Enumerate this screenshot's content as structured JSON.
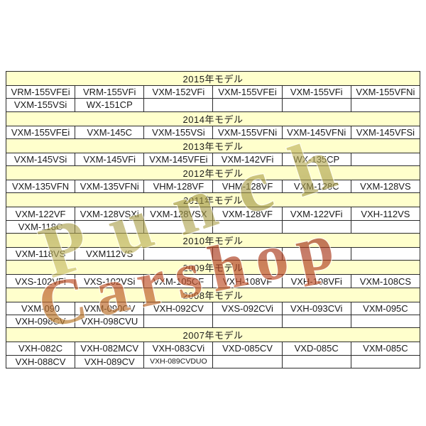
{
  "table": {
    "header_bg": "#ffffcc",
    "cell_bg": "#ffffff",
    "border_color": "#2b2b2b",
    "columns": 6,
    "sections": [
      {
        "year_label": "2015年モデル",
        "rows": [
          [
            "VRM-155VFEi",
            "VRM-155VFi",
            "VXM-152VFi",
            "VXM-155VFEi",
            "VXM-155VFi",
            "VXM-155VFNi"
          ],
          [
            "VXM-155VSi",
            "WX-151CP",
            "",
            "",
            "",
            ""
          ]
        ]
      },
      {
        "year_label": "2014年モデル",
        "rows": [
          [
            "VXM-155VFEi",
            "VXM-145C",
            "VXM-155VSi",
            "VXM-155VFNi",
            "VXM-145VFNi",
            "VXM-145VFSi"
          ]
        ]
      },
      {
        "year_label": "2013年モデル",
        "rows": [
          [
            "VXM-145VSi",
            "VXM-145VFi",
            "VXM-145VFEi",
            "VXM-142VFi",
            "WX-135CP",
            ""
          ]
        ]
      },
      {
        "year_label": "2012年モデル",
        "rows": [
          [
            "VXM-135VFN",
            "VXM-135VFNi",
            "VHM-128VF",
            "VHM-128VF",
            "VXM-128C",
            "VXM-128VS"
          ]
        ]
      },
      {
        "year_label": "2011年モデル",
        "rows": [
          [
            "VXM-122VF",
            "VXM-128VSXi",
            "VXM-128VSX",
            "VXM-128VF",
            "VXM-122VFi",
            "VXH-112VS"
          ],
          [
            "VXM-118C",
            "",
            "",
            "",
            "",
            ""
          ]
        ]
      },
      {
        "year_label": "2010年モデル",
        "rows": [
          [
            "VXM-118VS",
            "VXM112VS",
            "",
            "",
            "",
            ""
          ]
        ]
      },
      {
        "year_label": "2009年モデル",
        "rows": [
          [
            "VXS-102VFi",
            "VXS-102VSi",
            "VXM-105CF",
            "VXH-108VF",
            "VXH-108VFi",
            "VXM-108CS"
          ]
        ]
      },
      {
        "year_label": "2008年モデル",
        "rows": [
          [
            "VXM-090",
            "VXM-090CV",
            "VXH-092CV",
            "VXS-092CVi",
            "VXH-093CVi",
            "VXM-095C"
          ],
          [
            "VXH-098CV",
            "VXH-098CVU",
            "",
            "",
            "",
            ""
          ]
        ]
      },
      {
        "year_label": "2007年モデル",
        "rows": [
          [
            "VXH-082C",
            "VXH-082MCV",
            "VXH-083CVi",
            "VXD-085CV",
            "VXD-085C",
            "VXM-085C"
          ],
          [
            "VXH-088CV",
            "VXH-089CV",
            "VXH-089CVDUO",
            "",
            "",
            ""
          ]
        ]
      }
    ]
  },
  "watermark": {
    "line1": "Punch",
    "line2": "Carshop",
    "colors": {
      "khaki_light": "#d8cc74",
      "khaki_dark": "#9f9440",
      "gold": "#c2a23c",
      "red": "#c0512c",
      "crimson": "#8e2416"
    }
  }
}
